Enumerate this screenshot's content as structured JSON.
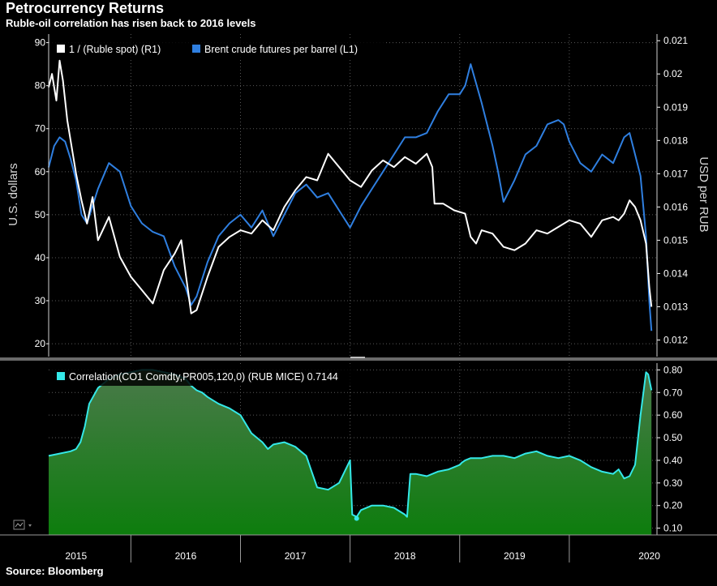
{
  "title": "Petrocurrency Returns",
  "subtitle": "Ruble-oil correlation has risen back to 2016 levels",
  "source": "Source: Bloomberg",
  "colors": {
    "background": "#000000",
    "ruble_series": "#ffffff",
    "brent_series": "#2f7fe0",
    "correlation_line": "#34e8e8",
    "correlation_fill_top": "#3d7a3d",
    "correlation_fill_bottom": "#0f7a0f",
    "grid": "#5a5a5a"
  },
  "chart_data": [
    {
      "type": "line",
      "panel": "top",
      "ylabel_left": "U.S. dollars",
      "ylabel_right": "USD per RUB",
      "ylim_left": [
        17,
        92
      ],
      "ylim_right": [
        0.0115,
        0.0212
      ],
      "left_ticks": [
        "20",
        "30",
        "40",
        "50",
        "60",
        "70",
        "80",
        "90"
      ],
      "right_ticks": [
        "0.012",
        "0.013",
        "0.014",
        "0.015",
        "0.016",
        "0.017",
        "0.018",
        "0.019",
        "0.02",
        "0.021"
      ],
      "legend": [
        "1 / (Ruble spot) (R1)",
        "Brent crude futures per barrel (L1)"
      ],
      "legend_position": "top-left",
      "grid": true,
      "x_range": [
        2014.75,
        2020.3
      ],
      "series": [
        {
          "name": "1 / (Ruble spot) (R1)",
          "axis": "right",
          "x": [
            2014.75,
            2014.78,
            2014.82,
            2014.85,
            2014.88,
            2014.92,
            2014.96,
            2015.0,
            2015.05,
            2015.1,
            2015.15,
            2015.2,
            2015.3,
            2015.4,
            2015.5,
            2015.6,
            2015.7,
            2015.8,
            2015.9,
            2015.96,
            2016.0,
            2016.05,
            2016.1,
            2016.2,
            2016.3,
            2016.4,
            2016.5,
            2016.6,
            2016.7,
            2016.8,
            2016.9,
            2017.0,
            2017.05,
            2017.1,
            2017.2,
            2017.3,
            2017.4,
            2017.5,
            2017.6,
            2017.7,
            2017.8,
            2017.9,
            2018.0,
            2018.1,
            2018.2,
            2018.25,
            2018.27,
            2018.35,
            2018.45,
            2018.55,
            2018.6,
            2018.65,
            2018.7,
            2018.8,
            2018.9,
            2019.0,
            2019.1,
            2019.2,
            2019.3,
            2019.4,
            2019.5,
            2019.6,
            2019.7,
            2019.8,
            2019.9,
            2019.95,
            2020.0,
            2020.05,
            2020.1,
            2020.15,
            2020.2,
            2020.23,
            2020.25
          ],
          "y": [
            0.0196,
            0.02,
            0.0192,
            0.0204,
            0.0198,
            0.0186,
            0.0178,
            0.017,
            0.0162,
            0.0155,
            0.0163,
            0.015,
            0.0157,
            0.0145,
            0.0139,
            0.0135,
            0.0131,
            0.0141,
            0.0146,
            0.015,
            0.014,
            0.0128,
            0.0129,
            0.0139,
            0.0148,
            0.0151,
            0.0153,
            0.0152,
            0.0156,
            0.0153,
            0.016,
            0.0165,
            0.0167,
            0.0169,
            0.0168,
            0.0176,
            0.0172,
            0.0168,
            0.0166,
            0.0171,
            0.0174,
            0.0172,
            0.0175,
            0.0173,
            0.0176,
            0.0172,
            0.0161,
            0.0161,
            0.0159,
            0.0158,
            0.0151,
            0.0149,
            0.0153,
            0.0152,
            0.0148,
            0.0147,
            0.0149,
            0.0153,
            0.0152,
            0.0154,
            0.0156,
            0.0155,
            0.0151,
            0.0156,
            0.0157,
            0.0156,
            0.0158,
            0.0162,
            0.016,
            0.0156,
            0.0149,
            0.0136,
            0.013
          ]
        },
        {
          "name": "Brent crude futures per barrel (L1)",
          "axis": "left",
          "x": [
            2014.75,
            2014.8,
            2014.85,
            2014.9,
            2014.95,
            2015.0,
            2015.05,
            2015.1,
            2015.2,
            2015.3,
            2015.4,
            2015.5,
            2015.6,
            2015.7,
            2015.8,
            2015.9,
            2016.0,
            2016.05,
            2016.1,
            2016.2,
            2016.3,
            2016.4,
            2016.5,
            2016.6,
            2016.7,
            2016.8,
            2016.9,
            2017.0,
            2017.1,
            2017.2,
            2017.3,
            2017.4,
            2017.5,
            2017.6,
            2017.7,
            2017.8,
            2017.9,
            2018.0,
            2018.1,
            2018.2,
            2018.3,
            2018.4,
            2018.5,
            2018.55,
            2018.6,
            2018.7,
            2018.8,
            2018.85,
            2018.9,
            2019.0,
            2019.1,
            2019.2,
            2019.3,
            2019.4,
            2019.45,
            2019.5,
            2019.6,
            2019.7,
            2019.8,
            2019.9,
            2020.0,
            2020.05,
            2020.1,
            2020.15,
            2020.2,
            2020.23,
            2020.25
          ],
          "y": [
            61,
            66,
            68,
            67,
            63,
            58,
            50,
            48,
            56,
            62,
            60,
            52,
            48,
            46,
            45,
            38,
            33,
            29,
            31,
            39,
            45,
            48,
            50,
            47,
            51,
            45,
            50,
            55,
            57,
            54,
            55,
            51,
            47,
            52,
            56,
            60,
            64,
            68,
            68,
            69,
            74,
            78,
            78,
            80,
            85,
            76,
            66,
            60,
            53,
            58,
            64,
            66,
            71,
            72,
            71,
            67,
            62,
            60,
            64,
            62,
            68,
            69,
            64,
            59,
            45,
            30,
            23
          ]
        }
      ]
    },
    {
      "type": "area",
      "panel": "bottom",
      "legend": [
        "Correlation(CO1 Comdty,PR005,120,0) (RUB MICE) 0.7144"
      ],
      "legend_position": "top-left",
      "ylim": [
        0.07,
        0.83
      ],
      "ticks": [
        "0.10",
        "0.20",
        "0.30",
        "0.40",
        "0.50",
        "0.60",
        "0.70",
        "0.80"
      ],
      "grid": true,
      "x_range": [
        2014.75,
        2020.3
      ],
      "last_value": 0.7144,
      "series": [
        {
          "name": "Correlation(CO1 Comdty,PR005,120,0) (RUB MICE)",
          "x": [
            2014.75,
            2014.85,
            2014.95,
            2015.0,
            2015.04,
            2015.08,
            2015.12,
            2015.2,
            2015.3,
            2015.4,
            2015.5,
            2015.6,
            2015.7,
            2015.8,
            2015.9,
            2016.0,
            2016.05,
            2016.1,
            2016.15,
            2016.2,
            2016.3,
            2016.4,
            2016.5,
            2016.6,
            2016.7,
            2016.75,
            2016.8,
            2016.9,
            2017.0,
            2017.05,
            2017.1,
            2017.15,
            2017.2,
            2017.3,
            2017.4,
            2017.5,
            2017.52,
            2017.56,
            2017.6,
            2017.7,
            2017.8,
            2017.9,
            2018.0,
            2018.02,
            2018.05,
            2018.1,
            2018.2,
            2018.3,
            2018.4,
            2018.45,
            2018.5,
            2018.52,
            2018.55,
            2018.6,
            2018.7,
            2018.8,
            2018.9,
            2019.0,
            2019.1,
            2019.2,
            2019.3,
            2019.4,
            2019.5,
            2019.6,
            2019.7,
            2019.8,
            2019.9,
            2019.95,
            2020.0,
            2020.05,
            2020.1,
            2020.15,
            2020.2,
            2020.22,
            2020.25
          ],
          "y": [
            0.42,
            0.43,
            0.44,
            0.45,
            0.48,
            0.55,
            0.65,
            0.72,
            0.76,
            0.78,
            0.79,
            0.8,
            0.8,
            0.79,
            0.78,
            0.76,
            0.73,
            0.71,
            0.7,
            0.68,
            0.65,
            0.63,
            0.6,
            0.52,
            0.48,
            0.45,
            0.47,
            0.48,
            0.46,
            0.44,
            0.42,
            0.35,
            0.28,
            0.27,
            0.3,
            0.4,
            0.16,
            0.15,
            0.18,
            0.2,
            0.2,
            0.19,
            0.16,
            0.15,
            0.34,
            0.34,
            0.33,
            0.35,
            0.36,
            0.37,
            0.38,
            0.39,
            0.4,
            0.41,
            0.41,
            0.42,
            0.42,
            0.41,
            0.43,
            0.44,
            0.42,
            0.41,
            0.42,
            0.4,
            0.37,
            0.35,
            0.34,
            0.36,
            0.32,
            0.33,
            0.38,
            0.6,
            0.79,
            0.78,
            0.71
          ]
        }
      ]
    }
  ],
  "x_axis": {
    "year_labels": [
      "2015",
      "2016",
      "2017",
      "2018",
      "2019",
      "2020"
    ],
    "year_centers": [
      2015.0,
      2016.0,
      2017.0,
      2018.0,
      2019.0,
      2020.23
    ]
  }
}
